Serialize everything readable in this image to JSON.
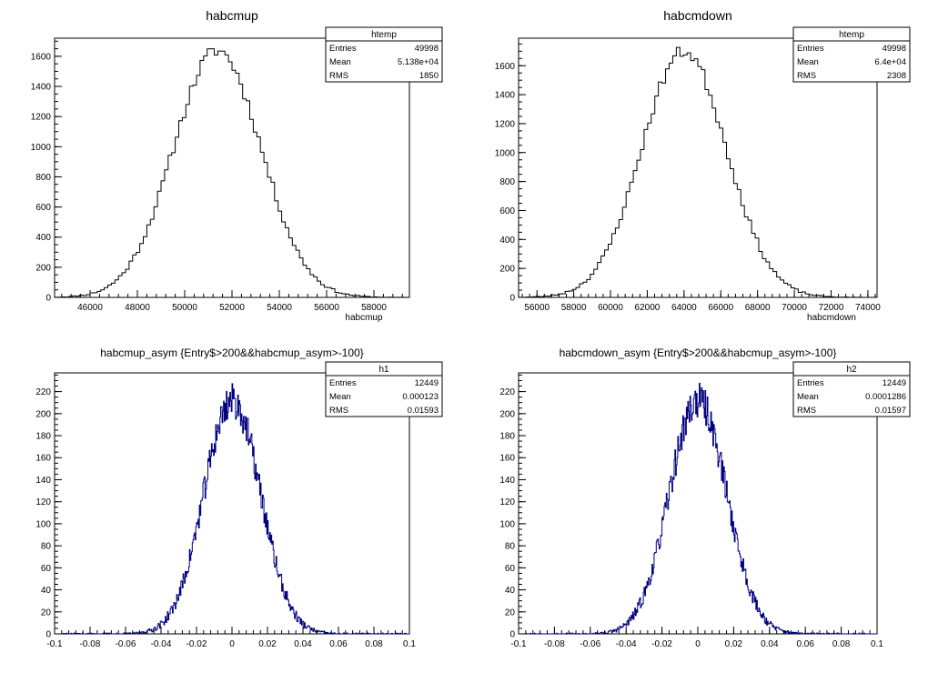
{
  "chart_data": [
    {
      "type": "histogram",
      "title": "habcmup",
      "xlabel": "habcmup",
      "ylabel": "",
      "xlim": [
        44500,
        59500
      ],
      "ylim": [
        0,
        1720
      ],
      "xticks": [
        46000,
        48000,
        50000,
        52000,
        54000,
        56000,
        58000
      ],
      "xtick_labels": [
        "46000",
        "48000",
        "50000",
        "52000",
        "54000",
        "56000",
        "58000"
      ],
      "yticks": [
        0,
        200,
        400,
        600,
        800,
        1000,
        1200,
        1400,
        1600
      ],
      "ytick_labels": [
        "0",
        "200",
        "400",
        "600",
        "800",
        "1000",
        "1200",
        "1400",
        "1600"
      ],
      "line_color": "#000000",
      "stats": {
        "name": "htemp",
        "rows": [
          {
            "label": "Entries",
            "value": "49998"
          },
          {
            "label": "Mean",
            "value": "5.138e+04"
          },
          {
            "label": "RMS",
            "value": "1850"
          }
        ]
      },
      "mean": 51380,
      "rms": 1850,
      "entries": 49998,
      "peak": 1640,
      "bin_width": 150,
      "seed": 11
    },
    {
      "type": "histogram",
      "title": "habcmdown",
      "xlabel": "habcmdown",
      "ylabel": "",
      "xlim": [
        55000,
        74500
      ],
      "ylim": [
        0,
        1790
      ],
      "xticks": [
        56000,
        58000,
        60000,
        62000,
        64000,
        66000,
        68000,
        70000,
        72000,
        74000
      ],
      "xtick_labels": [
        "56000",
        "58000",
        "60000",
        "62000",
        "64000",
        "66000",
        "68000",
        "70000",
        "72000",
        "74000"
      ],
      "yticks": [
        0,
        200,
        400,
        600,
        800,
        1000,
        1200,
        1400,
        1600
      ],
      "ytick_labels": [
        "0",
        "200",
        "400",
        "600",
        "800",
        "1000",
        "1200",
        "1400",
        "1600"
      ],
      "line_color": "#000000",
      "stats": {
        "name": "htemp",
        "rows": [
          {
            "label": "Entries",
            "value": "49998"
          },
          {
            "label": "Mean",
            "value": "6.4e+04"
          },
          {
            "label": "RMS",
            "value": "2308"
          }
        ]
      },
      "mean": 64000,
      "rms": 2308,
      "entries": 49998,
      "peak": 1700,
      "bin_width": 195,
      "seed": 23
    },
    {
      "type": "histogram",
      "title": "habcmup_asym {Entry$>200&&habcmup_asym>-100}",
      "xlabel": "",
      "ylabel": "",
      "xlim": [
        -0.1,
        0.1
      ],
      "ylim": [
        0,
        237
      ],
      "xticks": [
        -0.1,
        -0.08,
        -0.06,
        -0.04,
        -0.02,
        0,
        0.02,
        0.04,
        0.06,
        0.08,
        0.1
      ],
      "xtick_labels": [
        "-0.1",
        "-0.08",
        "-0.06",
        "-0.04",
        "-0.02",
        "0",
        "0.02",
        "0.04",
        "0.06",
        "0.08",
        "0.1"
      ],
      "yticks": [
        0,
        20,
        40,
        60,
        80,
        100,
        120,
        140,
        160,
        180,
        200,
        220
      ],
      "ytick_labels": [
        "0",
        "20",
        "40",
        "60",
        "80",
        "100",
        "120",
        "140",
        "160",
        "180",
        "200",
        "220"
      ],
      "line_color": "#000080",
      "stats": {
        "name": "h1",
        "rows": [
          {
            "label": "Entries",
            "value": "12449"
          },
          {
            "label": "Mean",
            "value": "0.000123"
          },
          {
            "label": "RMS",
            "value": "0.01593"
          }
        ]
      },
      "mean": 0.000123,
      "rms": 0.01593,
      "entries": 12449,
      "peak": 212,
      "bin_width": 0.0004,
      "seed": 37
    },
    {
      "type": "histogram",
      "title": "habcmdown_asym {Entry$>200&&habcmup_asym>-100}",
      "xlabel": "",
      "ylabel": "",
      "xlim": [
        -0.1,
        0.1
      ],
      "ylim": [
        0,
        237
      ],
      "xticks": [
        -0.1,
        -0.08,
        -0.06,
        -0.04,
        -0.02,
        0,
        0.02,
        0.04,
        0.06,
        0.08,
        0.1
      ],
      "xtick_labels": [
        "-0.1",
        "-0.08",
        "-0.06",
        "-0.04",
        "-0.02",
        "0",
        "0.02",
        "0.04",
        "0.06",
        "0.08",
        "0.1"
      ],
      "yticks": [
        0,
        20,
        40,
        60,
        80,
        100,
        120,
        140,
        160,
        180,
        200,
        220
      ],
      "ytick_labels": [
        "0",
        "20",
        "40",
        "60",
        "80",
        "100",
        "120",
        "140",
        "160",
        "180",
        "200",
        "220"
      ],
      "line_color": "#000080",
      "stats": {
        "name": "h2",
        "rows": [
          {
            "label": "Entries",
            "value": "12449"
          },
          {
            "label": "Mean",
            "value": "0.0001286"
          },
          {
            "label": "RMS",
            "value": "0.01597"
          }
        ]
      },
      "mean": 0.0001286,
      "rms": 0.01597,
      "entries": 12449,
      "peak": 212,
      "bin_width": 0.0004,
      "seed": 53
    }
  ]
}
